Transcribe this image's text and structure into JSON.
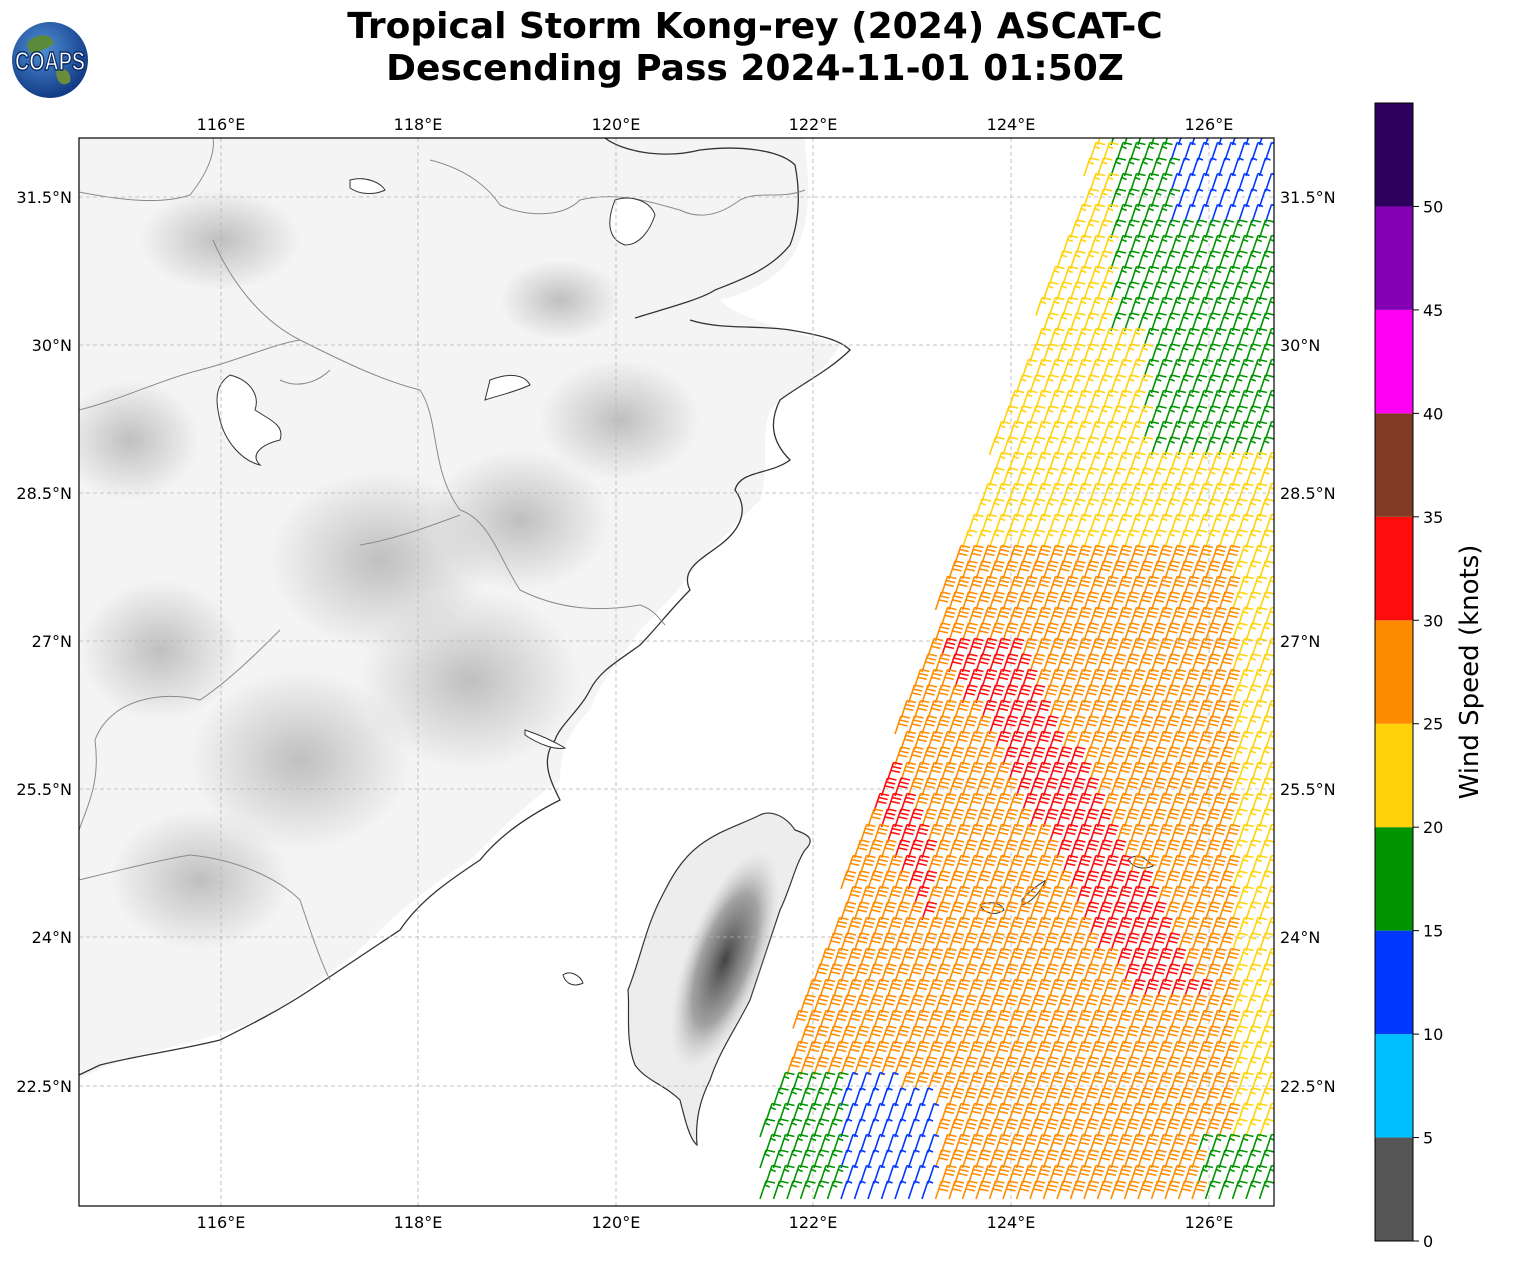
{
  "title": {
    "line1": "Tropical Storm Kong-rey (2024) ASCAT-C",
    "line2": "Descending Pass 2024-11-01 01:50Z"
  },
  "logo": {
    "text": "COAPS",
    "icon": "globe-icon"
  },
  "map": {
    "lon_range": [
      114.55,
      126.65
    ],
    "lat_range": [
      21.2,
      32.0
    ],
    "lon_ticks": [
      "116°E",
      "118°E",
      "120°E",
      "122°E",
      "124°E",
      "126°E"
    ],
    "lat_ticks": [
      "31.5°N",
      "30°N",
      "28.5°N",
      "27°N",
      "25.5°N",
      "24°N",
      "22.5°N"
    ],
    "gridlines": true,
    "features": [
      "coastline",
      "borders",
      "terrain-shading",
      "wind-barbs"
    ]
  },
  "colorbar": {
    "label": "Wind Speed (knots)",
    "ticks": [
      "0",
      "5",
      "10",
      "15",
      "20",
      "25",
      "30",
      "35",
      "40",
      "45",
      "50"
    ],
    "bins": [
      {
        "range": "0-5",
        "color": "#555555"
      },
      {
        "range": "5-10",
        "color": "#00bfff"
      },
      {
        "range": "10-15",
        "color": "#0038ff"
      },
      {
        "range": "15-20",
        "color": "#009400"
      },
      {
        "range": "20-25",
        "color": "#ffd20a"
      },
      {
        "range": "25-30",
        "color": "#ff8c00"
      },
      {
        "range": "30-35",
        "color": "#ff0d0d"
      },
      {
        "range": "35-40",
        "color": "#803a25"
      },
      {
        "range": "40-45",
        "color": "#ff00f4"
      },
      {
        "range": "45-50",
        "color": "#8300b4"
      },
      {
        "range": "50+",
        "color": "#2d005d"
      }
    ]
  }
}
